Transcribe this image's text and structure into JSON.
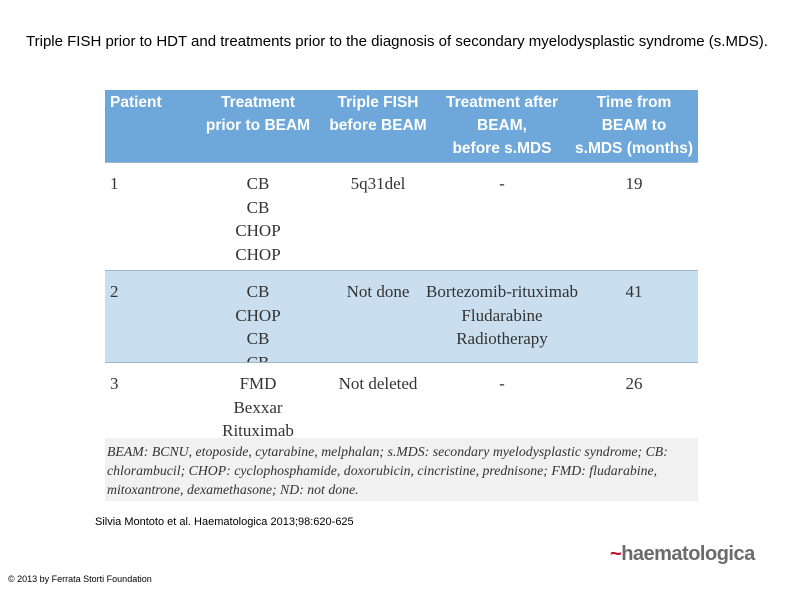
{
  "title": "Triple FISH prior to HDT and treatments prior to the diagnosis of secondary myelodysplastic syndrome (s.MDS).",
  "table": {
    "header": [
      [
        "Patient"
      ],
      [
        "Treatment",
        "prior to BEAM"
      ],
      [
        "Triple FISH",
        "before BEAM"
      ],
      [
        "Treatment after",
        "BEAM,",
        "before s.MDS"
      ],
      [
        "Time from",
        "BEAM to",
        "s.MDS (months)"
      ]
    ],
    "rows": [
      [
        [
          "1"
        ],
        [
          "CB",
          "CB",
          "CHOP",
          "CHOP"
        ],
        [
          "5q31del"
        ],
        [
          "-"
        ],
        [
          "19"
        ]
      ],
      [
        [
          "2"
        ],
        [
          "CB",
          "CHOP",
          "CB",
          "CB"
        ],
        [
          "Not done"
        ],
        [
          "Bortezomib-rituximab",
          "Fludarabine",
          "Radiotherapy"
        ],
        [
          "41"
        ]
      ],
      [
        [
          "3"
        ],
        [
          "FMD",
          "Bexxar",
          "Rituximab"
        ],
        [
          "Not deleted"
        ],
        [
          "-"
        ],
        [
          "26"
        ]
      ]
    ],
    "footnote": "BEAM: BCNU, etoposide, cytarabine, melphalan; s.MDS: secondary myelodysplastic syndrome; CB: chlorambucil; CHOP: cyclophosphamide, doxorubicin, cincristine, prednisone; FMD: fludarabine, mitoxantrone, dexamethasone; ND: not done."
  },
  "citation": "Silvia Montoto et al. Haematologica 2013;98:620-625",
  "copyright": "© 2013 by Ferrata Storti Foundation",
  "logo": "haematologica"
}
